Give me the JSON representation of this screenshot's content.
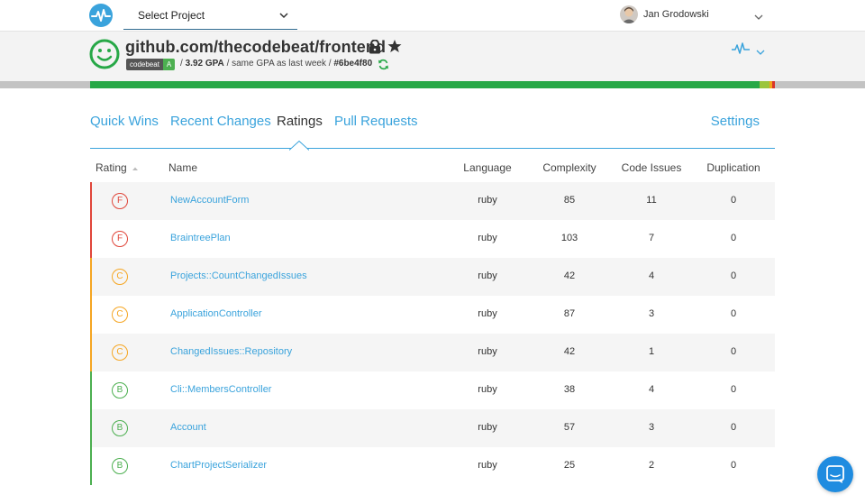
{
  "header": {
    "project_select_label": "Select Project",
    "user_name": "Jan Grodowski"
  },
  "project": {
    "repo": "github.com/thecodebeat/frontend",
    "badge_left": "codebeat",
    "badge_right": "A",
    "sep1": "/",
    "gpa": "3.92 GPA",
    "sep2": "/",
    "gpa_note": "same GPA as last week",
    "sep3": "/",
    "commit": "#6be4f80"
  },
  "tabs": [
    {
      "label": "Quick Wins"
    },
    {
      "label": "Recent Changes"
    },
    {
      "label": "Ratings"
    },
    {
      "label": "Pull Requests"
    },
    {
      "label": "Settings"
    }
  ],
  "table": {
    "headers": {
      "rating": "Rating",
      "name": "Name",
      "language": "Language",
      "complexity": "Complexity",
      "code_issues": "Code Issues",
      "duplication": "Duplication"
    },
    "rows": [
      {
        "grade": "F",
        "name": "NewAccountForm",
        "language": "ruby",
        "complexity": "85",
        "code_issues": "11",
        "duplication": "0"
      },
      {
        "grade": "F",
        "name": "BraintreePlan",
        "language": "ruby",
        "complexity": "103",
        "code_issues": "7",
        "duplication": "0"
      },
      {
        "grade": "C",
        "name": "Projects::CountChangedIssues",
        "language": "ruby",
        "complexity": "42",
        "code_issues": "4",
        "duplication": "0"
      },
      {
        "grade": "C",
        "name": "ApplicationController",
        "language": "ruby",
        "complexity": "87",
        "code_issues": "3",
        "duplication": "0"
      },
      {
        "grade": "C",
        "name": "ChangedIssues::Repository",
        "language": "ruby",
        "complexity": "42",
        "code_issues": "1",
        "duplication": "0"
      },
      {
        "grade": "B",
        "name": "Cli::MembersController",
        "language": "ruby",
        "complexity": "38",
        "code_issues": "4",
        "duplication": "0"
      },
      {
        "grade": "B",
        "name": "Account",
        "language": "ruby",
        "complexity": "57",
        "code_issues": "3",
        "duplication": "0"
      },
      {
        "grade": "B",
        "name": "ChartProjectSerializer",
        "language": "ruby",
        "complexity": "25",
        "code_issues": "2",
        "duplication": "0"
      }
    ]
  },
  "colors": {
    "accent": "#3aa3dc",
    "grade_F": "#e0463a",
    "grade_C": "#f5a623",
    "grade_B": "#4caf50",
    "smiley": "#27a847"
  },
  "icons": [
    "pulse-logo-icon",
    "chevron-down-icon",
    "smiley-icon",
    "lock-icon",
    "star-icon",
    "refresh-icon",
    "activity-icon",
    "sort-arrow-icon",
    "chat-icon"
  ]
}
